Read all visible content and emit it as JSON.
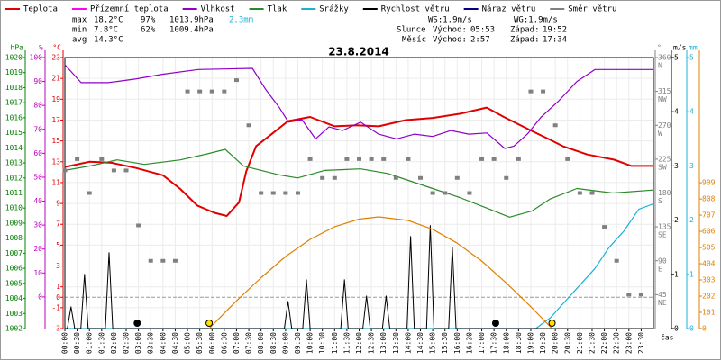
{
  "chart_data": {
    "type": "line",
    "title": "23.8.2014",
    "xlabel": "čas",
    "xlim": [
      0,
      24
    ],
    "xticks": [
      {
        "value": 0,
        "label": "00:00"
      },
      {
        "value": 0.5,
        "label": "00:30"
      },
      {
        "value": 1,
        "label": "01:00"
      },
      {
        "value": 1.5,
        "label": "01:30"
      },
      {
        "value": 2,
        "label": "02:00"
      },
      {
        "value": 2.5,
        "label": "02:30"
      },
      {
        "value": 3,
        "label": "03:00"
      },
      {
        "value": 3.5,
        "label": "03:30"
      },
      {
        "value": 4,
        "label": "04:00"
      },
      {
        "value": 4.5,
        "label": "04:30"
      },
      {
        "value": 5,
        "label": "05:00"
      },
      {
        "value": 5.5,
        "label": "05:30"
      },
      {
        "value": 6,
        "label": "06:00"
      },
      {
        "value": 6.5,
        "label": "06:30"
      },
      {
        "value": 7,
        "label": "07:00"
      },
      {
        "value": 7.5,
        "label": "07:30"
      },
      {
        "value": 8,
        "label": "08:00"
      },
      {
        "value": 8.5,
        "label": "08:30"
      },
      {
        "value": 9,
        "label": "09:00"
      },
      {
        "value": 9.5,
        "label": "09:30"
      },
      {
        "value": 10,
        "label": "10:00"
      },
      {
        "value": 10.5,
        "label": "10:30"
      },
      {
        "value": 11,
        "label": "11:00"
      },
      {
        "value": 11.5,
        "label": "11:30"
      },
      {
        "value": 12,
        "label": "12:00"
      },
      {
        "value": 12.5,
        "label": "12:30"
      },
      {
        "value": 13,
        "label": "13:00"
      },
      {
        "value": 13.5,
        "label": "13:30"
      },
      {
        "value": 14,
        "label": "14:00"
      },
      {
        "value": 14.5,
        "label": "14:30"
      },
      {
        "value": 15,
        "label": "15:00"
      },
      {
        "value": 15.5,
        "label": "15:30"
      },
      {
        "value": 16,
        "label": "16:00"
      },
      {
        "value": 16.5,
        "label": "16:30"
      },
      {
        "value": 17,
        "label": "17:00"
      },
      {
        "value": 17.5,
        "label": "17:30"
      },
      {
        "value": 18,
        "label": "18:00"
      },
      {
        "value": 18.5,
        "label": "18:30"
      },
      {
        "value": 19,
        "label": "19:00"
      },
      {
        "value": 19.5,
        "label": "19:30"
      },
      {
        "value": 20,
        "label": "20:00"
      },
      {
        "value": 20.5,
        "label": "20:30"
      },
      {
        "value": 21,
        "label": "21:00"
      },
      {
        "value": 21.5,
        "label": "21:30"
      },
      {
        "value": 22,
        "label": "22:00"
      },
      {
        "value": 22.5,
        "label": "22:30"
      },
      {
        "value": 23,
        "label": "23:00"
      },
      {
        "value": 23.5,
        "label": "23:30"
      }
    ],
    "axes": [
      {
        "label": "hPa",
        "color": "#008000",
        "side": "left",
        "lim": [
          1002,
          1020
        ],
        "ticks": [
          1002,
          1003,
          1004,
          1005,
          1006,
          1007,
          1008,
          1009,
          1010,
          1011,
          1012,
          1013,
          1014,
          1015,
          1016,
          1017,
          1018,
          1019,
          1020
        ]
      },
      {
        "label": "%",
        "color": "#c000c0",
        "side": "left",
        "lim": [
          -13.2,
          100
        ],
        "ticks": [
          0,
          10,
          20,
          30,
          40,
          50,
          60,
          70,
          80,
          90,
          100
        ]
      },
      {
        "label": "°C",
        "color": "#e00000",
        "side": "left",
        "lim": [
          -3,
          23
        ],
        "ticks": [
          -3,
          -1,
          0,
          1,
          3,
          5,
          7,
          9,
          11,
          13,
          15,
          17,
          19,
          21,
          23
        ]
      },
      {
        "label": "°",
        "color": "#808080",
        "side": "right",
        "lim": [
          0,
          360
        ],
        "ticks": [
          45,
          90,
          135,
          180,
          225,
          270,
          315,
          360
        ],
        "tick_dirs": [
          "NE",
          "E",
          "SE",
          "S",
          "SW",
          "W",
          "NW",
          "N"
        ]
      },
      {
        "label": "m/s",
        "color": "#000000",
        "side": "right",
        "lim": [
          0,
          5
        ],
        "ticks": [
          0,
          1,
          2,
          3,
          4,
          5
        ]
      },
      {
        "label": "mm",
        "color": "#1ab0d8",
        "side": "right",
        "lim": [
          0,
          5
        ],
        "ticks": [
          0,
          1,
          2,
          3,
          4,
          5
        ]
      },
      {
        "color": "#e08000",
        "side": "right",
        "lim": [
          0,
          1690
        ],
        "ticks": [
          0,
          101,
          202,
          303,
          404,
          505,
          606,
          707,
          808,
          909
        ]
      }
    ],
    "series": [
      {
        "name": "Teplota",
        "color": "#e00000",
        "axis": 2,
        "style": "line",
        "width": 2,
        "x": [
          0,
          1.0,
          1.9,
          2.9,
          4.0,
          4.7,
          5.4,
          6.1,
          6.6,
          7.1,
          7.4,
          7.8,
          8.4,
          9.1,
          10.0,
          11.0,
          11.9,
          12.8,
          13.9,
          15.0,
          16.1,
          17.2,
          17.9,
          19.0,
          19.8,
          20.3,
          21.3,
          22.4,
          23.1,
          24.0
        ],
        "values": [
          12.5,
          13.0,
          12.9,
          12.4,
          11.7,
          10.4,
          8.8,
          8.1,
          7.8,
          9.1,
          12.1,
          14.5,
          15.6,
          16.9,
          17.3,
          16.4,
          16.5,
          16.4,
          17.0,
          17.2,
          17.6,
          18.2,
          17.3,
          16.0,
          15.1,
          14.5,
          13.7,
          13.2,
          12.6,
          12.6
        ]
      },
      {
        "name": "Přízemní teplota",
        "color": "#ff00ff",
        "axis": 2,
        "style": "line",
        "width": 1,
        "x": [],
        "values": []
      },
      {
        "name": "Vlhkost",
        "color": "#9000c8",
        "axis": 1,
        "style": "line",
        "width": 1.2,
        "x": [
          0,
          0.66,
          1.76,
          2.87,
          3.97,
          5.44,
          7.65,
          8.2,
          8.75,
          9.12,
          9.67,
          10.22,
          10.77,
          11.32,
          12.06,
          12.79,
          13.53,
          14.26,
          15.0,
          15.74,
          16.47,
          17.21,
          17.94,
          18.31,
          18.86,
          19.41,
          20.15,
          20.88,
          21.62,
          24
        ],
        "values": [
          97,
          89.5,
          89.5,
          91,
          93,
          95,
          95.5,
          86.5,
          79,
          73,
          74,
          66,
          71,
          69.5,
          73,
          68,
          66,
          68,
          67,
          69.5,
          68,
          68.5,
          62,
          63,
          68,
          75,
          82,
          90,
          95,
          95
        ]
      },
      {
        "name": "Tlak",
        "color": "#2a8a2a",
        "axis": 0,
        "style": "line",
        "width": 1.2,
        "x": [
          0,
          1.03,
          2.13,
          3.24,
          4.71,
          5.81,
          6.54,
          7.28,
          8.01,
          8.75,
          9.49,
          10.59,
          12.06,
          13.16,
          13.9,
          15.0,
          16.1,
          17.2,
          18.13,
          19.04,
          19.78,
          20.88,
          22.35,
          24
        ],
        "values": [
          1012.5,
          1012.8,
          1013.2,
          1012.9,
          1013.2,
          1013.6,
          1013.9,
          1012.8,
          1012.5,
          1012.2,
          1012.0,
          1012.5,
          1012.6,
          1012.3,
          1011.9,
          1011.3,
          1010.7,
          1010.0,
          1009.4,
          1009.8,
          1010.6,
          1011.3,
          1011.0,
          1011.2
        ]
      },
      {
        "name": "Srážky",
        "color": "#1ab0d8",
        "axis": 5,
        "style": "line",
        "width": 1.2,
        "x": [
          0,
          19.2,
          19.8,
          20.4,
          21,
          21.6,
          22.2,
          22.8,
          23.4,
          24
        ],
        "values": [
          0,
          0,
          0.2,
          0.5,
          0.8,
          1.1,
          1.5,
          1.8,
          2.2,
          2.3
        ]
      },
      {
        "name": "Rychlost větru",
        "color": "#000000",
        "axis": 4,
        "style": "line",
        "width": 1,
        "x": [
          0,
          0.1,
          0.25,
          0.4,
          0.65,
          0.8,
          0.95,
          1.65,
          1.8,
          1.95,
          8.95,
          9.1,
          9.25,
          9.7,
          9.85,
          10.0,
          11.25,
          11.4,
          11.55,
          12.15,
          12.3,
          12.45,
          12.95,
          13.1,
          13.25,
          13.95,
          14.1,
          14.25,
          14.75,
          14.9,
          15.05,
          15.65,
          15.8,
          15.95,
          24
        ],
        "values": [
          0,
          0,
          0.4,
          0,
          0,
          1.0,
          0,
          0,
          1.4,
          0,
          0,
          0.5,
          0,
          0,
          0.9,
          0,
          0,
          0.9,
          0,
          0,
          0.6,
          0,
          0,
          0.6,
          0,
          0,
          1.7,
          0,
          0,
          1.9,
          0,
          0,
          1.5,
          0,
          0
        ]
      },
      {
        "name": "Náraz větru",
        "color": "#000080",
        "axis": 4,
        "style": "line",
        "width": 1,
        "x": [],
        "values": []
      },
      {
        "name": "Směr větru",
        "color": "#808080",
        "axis": 3,
        "style": "scatter",
        "x": [
          0,
          0.5,
          1,
          1.5,
          2,
          2.5,
          3,
          3.5,
          4,
          4.5,
          5,
          5.5,
          6,
          6.5,
          7,
          7.5,
          8,
          8.5,
          9,
          9.5,
          10,
          10.5,
          11,
          11.5,
          12,
          12.5,
          13,
          13.5,
          14,
          14.5,
          15,
          15.5,
          16,
          16.5,
          17,
          17.5,
          18,
          18.5,
          19,
          19.5,
          20,
          20.5,
          21,
          21.5,
          22,
          22.5,
          23,
          23.5
        ],
        "values": [
          210,
          225,
          180,
          225,
          210,
          210,
          137,
          90,
          90,
          90,
          315,
          315,
          315,
          315,
          330,
          270,
          180,
          180,
          180,
          180,
          225,
          200,
          200,
          225,
          225,
          225,
          225,
          200,
          225,
          200,
          180,
          180,
          200,
          180,
          225,
          225,
          200,
          225,
          315,
          315,
          270,
          225,
          180,
          180,
          135,
          90,
          45,
          45
        ]
      },
      {
        "color": "#e08000",
        "axis": 6,
        "style": "line",
        "width": 1.2,
        "x": [
          5.88,
          7,
          8,
          9,
          10,
          11,
          12,
          12.8,
          14,
          15,
          16,
          17,
          18,
          19,
          19.87
        ],
        "values": [
          0,
          173,
          317,
          449,
          556,
          635,
          682,
          696,
          674,
          619,
          532,
          421,
          284,
          136,
          0
        ]
      }
    ],
    "stats": {
      "rows": [
        {
          "label": "max",
          "temp": "18.2°C",
          "hum": "97%",
          "press": "1013.9hPa",
          "rain": "2.3mm"
        },
        {
          "label": "min",
          "temp": "7.8°C",
          "hum": "62%",
          "press": "1009.4hPa"
        },
        {
          "label": "avg",
          "temp": "14.3°C"
        }
      ],
      "ws": "WS:1.9m/s",
      "wg": "WG:1.9m/s",
      "sun": {
        "label": "Slunce",
        "rise_label": "Východ:",
        "rise": "05:53",
        "set_label": "Západ:",
        "set": "19:52"
      },
      "moon": {
        "label": "Měsíc",
        "rise_label": "Východ:",
        "rise": "2:57",
        "set_label": "Západ:",
        "set": "17:34"
      }
    }
  }
}
